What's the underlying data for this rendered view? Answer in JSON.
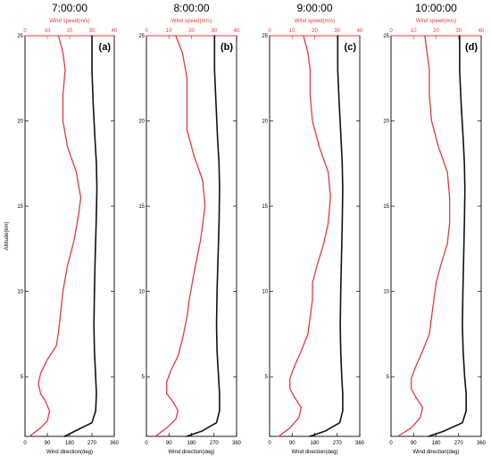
{
  "figure": {
    "ylabel": "Altitude(km)",
    "top_axis_label": "Wind speed(m/s)",
    "bottom_axis_label": "Wind direction(deg)",
    "colors": {
      "speed": "#e23a3a",
      "direction": "#111111",
      "top_axis": "#e23a3a"
    }
  },
  "chart_data": [
    {
      "type": "line",
      "title": "7:00:00",
      "panel_label": "(a)",
      "ylabel": "Altitude(km)",
      "ylim": [
        1.5,
        25
      ],
      "yticks": [
        5,
        10,
        15,
        20,
        25
      ],
      "x_top": {
        "label": "Wind speed(m/s)",
        "lim": [
          0,
          40
        ],
        "ticks": [
          0,
          10,
          20,
          30,
          40
        ]
      },
      "x_bottom": {
        "label": "Wind direction(deg)",
        "lim": [
          0,
          360
        ],
        "ticks": [
          0,
          90,
          180,
          270,
          360
        ]
      },
      "series": [
        {
          "name": "Wind speed(m/s)",
          "axis": "top",
          "points": [
            [
              2,
              1.5
            ],
            [
              7,
              2.0
            ],
            [
              10,
              2.4
            ],
            [
              11,
              3.0
            ],
            [
              9,
              3.6
            ],
            [
              7,
              4.0
            ],
            [
              6,
              4.6
            ],
            [
              7,
              5.2
            ],
            [
              10,
              6.0
            ],
            [
              14,
              6.8
            ],
            [
              15,
              7.6
            ],
            [
              16,
              8.8
            ],
            [
              17,
              10.0
            ],
            [
              19,
              11.5
            ],
            [
              22,
              13.0
            ],
            [
              24,
              14.5
            ],
            [
              25,
              15.5
            ],
            [
              23,
              17.0
            ],
            [
              19,
              18.5
            ],
            [
              17,
              20.0
            ],
            [
              17,
              21.5
            ],
            [
              18,
              23.0
            ],
            [
              17,
              24.0
            ],
            [
              15,
              25.0
            ]
          ]
        },
        {
          "name": "Wind direction(deg)",
          "axis": "bottom",
          "points": [
            [
              160,
              1.5
            ],
            [
              200,
              1.8
            ],
            [
              270,
              2.3
            ],
            [
              285,
              3.0
            ],
            [
              288,
              4.0
            ],
            [
              285,
              5.0
            ],
            [
              280,
              6.5
            ],
            [
              278,
              8.0
            ],
            [
              280,
              10.0
            ],
            [
              283,
              12.0
            ],
            [
              287,
              14.0
            ],
            [
              290,
              16.0
            ],
            [
              288,
              17.5
            ],
            [
              282,
              19.0
            ],
            [
              275,
              21.0
            ],
            [
              270,
              23.0
            ],
            [
              270,
              25.0
            ]
          ]
        }
      ]
    },
    {
      "type": "line",
      "title": "8:00:00",
      "panel_label": "(b)",
      "ylabel": "",
      "ylim": [
        1.5,
        25
      ],
      "yticks": [
        5,
        10,
        15,
        20,
        25
      ],
      "x_top": {
        "label": "Wind speed(m/s)",
        "lim": [
          0,
          40
        ],
        "ticks": [
          0,
          10,
          20,
          30,
          40
        ]
      },
      "x_bottom": {
        "label": "Wind direction(deg)",
        "lim": [
          0,
          360
        ],
        "ticks": [
          0,
          90,
          180,
          270,
          360
        ]
      },
      "series": [
        {
          "name": "Wind speed(m/s)",
          "axis": "top",
          "points": [
            [
              4,
              1.5
            ],
            [
              9,
              2.0
            ],
            [
              13,
              2.5
            ],
            [
              14,
              3.0
            ],
            [
              12,
              3.5
            ],
            [
              9,
              4.0
            ],
            [
              9,
              4.7
            ],
            [
              11,
              5.4
            ],
            [
              14,
              6.2
            ],
            [
              16,
              7.2
            ],
            [
              18,
              8.5
            ],
            [
              19,
              9.5
            ],
            [
              21,
              11.0
            ],
            [
              24,
              13.0
            ],
            [
              26,
              15.0
            ],
            [
              25,
              16.5
            ],
            [
              21,
              18.0
            ],
            [
              18,
              19.5
            ],
            [
              18,
              21.0
            ],
            [
              18,
              22.5
            ],
            [
              16,
              24.0
            ],
            [
              13,
              25.0
            ]
          ]
        },
        {
          "name": "Wind direction(deg)",
          "axis": "bottom",
          "points": [
            [
              160,
              1.5
            ],
            [
              220,
              1.8
            ],
            [
              280,
              2.3
            ],
            [
              292,
              3.0
            ],
            [
              292,
              4.0
            ],
            [
              288,
              5.0
            ],
            [
              282,
              6.5
            ],
            [
              280,
              8.0
            ],
            [
              282,
              10.0
            ],
            [
              286,
              12.0
            ],
            [
              290,
              14.0
            ],
            [
              292,
              16.0
            ],
            [
              290,
              17.5
            ],
            [
              284,
              19.0
            ],
            [
              278,
              21.0
            ],
            [
              272,
              23.0
            ],
            [
              272,
              25.0
            ]
          ]
        }
      ]
    },
    {
      "type": "line",
      "title": "9:00:00",
      "panel_label": "(c)",
      "ylabel": "",
      "ylim": [
        1.5,
        25
      ],
      "yticks": [
        5,
        10,
        15,
        20,
        25
      ],
      "x_top": {
        "label": "Wind speed(m/s)",
        "lim": [
          0,
          40
        ],
        "ticks": [
          0,
          10,
          20,
          30,
          40
        ]
      },
      "x_bottom": {
        "label": "Wind direction(deg)",
        "lim": [
          0,
          360
        ],
        "ticks": [
          0,
          90,
          180,
          270,
          360
        ]
      },
      "series": [
        {
          "name": "Wind speed(m/s)",
          "axis": "top",
          "points": [
            [
              4,
              1.5
            ],
            [
              9,
              2.0
            ],
            [
              13,
              2.6
            ],
            [
              14,
              3.2
            ],
            [
              11,
              3.8
            ],
            [
              9,
              4.3
            ],
            [
              9,
              4.9
            ],
            [
              11,
              5.6
            ],
            [
              14,
              6.5
            ],
            [
              17,
              7.5
            ],
            [
              18,
              8.5
            ],
            [
              19,
              9.5
            ],
            [
              19,
              10.5
            ],
            [
              21,
              11.5
            ],
            [
              24,
              12.8
            ],
            [
              26,
              14.0
            ],
            [
              27,
              15.5
            ],
            [
              26,
              17.0
            ],
            [
              22,
              18.5
            ],
            [
              19,
              20.0
            ],
            [
              18,
              21.5
            ],
            [
              18,
              23.0
            ],
            [
              17,
              24.0
            ],
            [
              15,
              25.0
            ]
          ]
        },
        {
          "name": "Wind direction(deg)",
          "axis": "bottom",
          "points": [
            [
              160,
              1.5
            ],
            [
              220,
              1.8
            ],
            [
              280,
              2.3
            ],
            [
              292,
              3.0
            ],
            [
              292,
              4.0
            ],
            [
              288,
              5.0
            ],
            [
              284,
              6.5
            ],
            [
              282,
              8.0
            ],
            [
              284,
              10.0
            ],
            [
              287,
              12.0
            ],
            [
              290,
              14.0
            ],
            [
              292,
              16.0
            ],
            [
              290,
              17.5
            ],
            [
              285,
              19.0
            ],
            [
              278,
              21.0
            ],
            [
              272,
              23.0
            ],
            [
              272,
              25.0
            ]
          ]
        }
      ]
    },
    {
      "type": "line",
      "title": "10:00:00",
      "panel_label": "(d)",
      "ylabel": "",
      "ylim": [
        1.5,
        25
      ],
      "yticks": [
        5,
        10,
        15,
        20,
        25
      ],
      "x_top": {
        "label": "Wind speed(m/s)",
        "lim": [
          0,
          40
        ],
        "ticks": [
          0,
          10,
          20,
          30,
          40
        ]
      },
      "x_bottom": {
        "label": "Wind direction(deg)",
        "lim": [
          0,
          360
        ],
        "ticks": [
          0,
          90,
          180,
          270,
          360
        ]
      },
      "series": [
        {
          "name": "Wind speed(m/s)",
          "axis": "top",
          "points": [
            [
              3,
              1.5
            ],
            [
              9,
              2.0
            ],
            [
              13,
              2.6
            ],
            [
              14,
              3.2
            ],
            [
              11,
              3.8
            ],
            [
              9,
              4.3
            ],
            [
              9,
              4.9
            ],
            [
              11,
              5.6
            ],
            [
              14,
              6.5
            ],
            [
              17,
              7.5
            ],
            [
              18,
              8.5
            ],
            [
              19,
              9.5
            ],
            [
              20,
              10.5
            ],
            [
              22,
              11.5
            ],
            [
              25,
              12.8
            ],
            [
              26,
              14.0
            ],
            [
              26,
              15.5
            ],
            [
              25,
              17.0
            ],
            [
              21,
              18.5
            ],
            [
              18,
              20.0
            ],
            [
              17,
              21.5
            ],
            [
              17,
              23.0
            ],
            [
              16,
              24.0
            ],
            [
              15,
              25.0
            ]
          ]
        },
        {
          "name": "Wind direction(deg)",
          "axis": "bottom",
          "points": [
            [
              150,
              1.5
            ],
            [
              210,
              1.8
            ],
            [
              285,
              2.3
            ],
            [
              300,
              3.0
            ],
            [
              300,
              4.0
            ],
            [
              294,
              5.0
            ],
            [
              288,
              6.5
            ],
            [
              285,
              8.0
            ],
            [
              287,
              10.0
            ],
            [
              290,
              12.0
            ],
            [
              293,
              14.0
            ],
            [
              295,
              16.0
            ],
            [
              293,
              17.5
            ],
            [
              288,
              19.0
            ],
            [
              280,
              21.0
            ],
            [
              274,
              23.0
            ],
            [
              274,
              25.0
            ]
          ]
        }
      ]
    }
  ]
}
